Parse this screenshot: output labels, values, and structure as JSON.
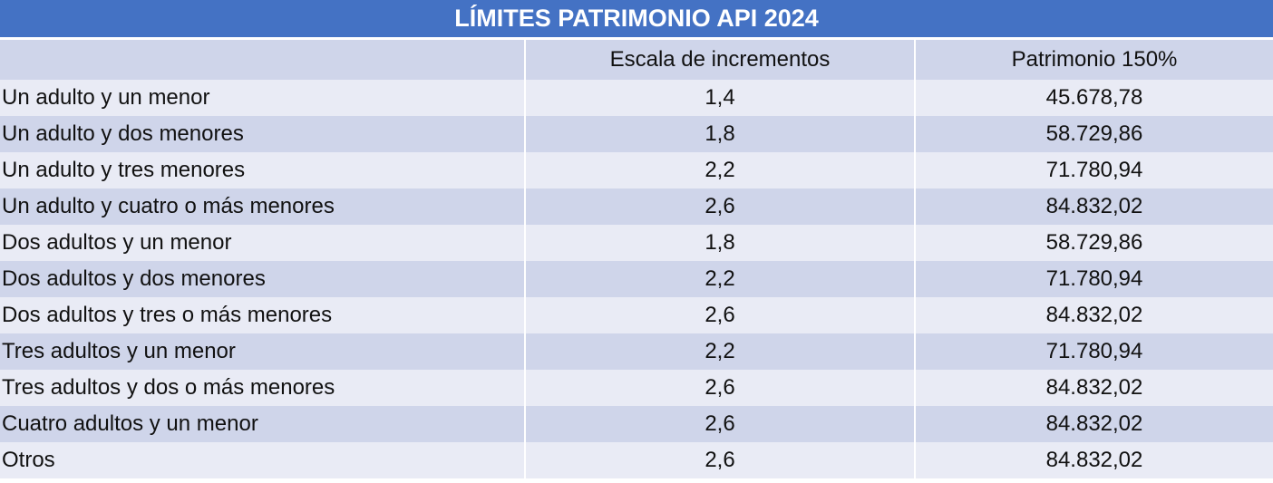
{
  "title": "LÍMITES PATRIMONIO API 2024",
  "colors": {
    "title_bg": "#4472c4",
    "header_bg": "#cfd5ea",
    "row_light": "#e9ebf5",
    "row_dark": "#cfd5ea"
  },
  "table": {
    "headers": [
      "",
      "Escala de incrementos",
      "Patrimonio 150%"
    ],
    "rows": [
      {
        "label": "Un adulto y un menor",
        "escala": "1,4",
        "patrimonio": "45.678,78"
      },
      {
        "label": "Un adulto y dos menores",
        "escala": "1,8",
        "patrimonio": "58.729,86"
      },
      {
        "label": "Un adulto y tres menores",
        "escala": "2,2",
        "patrimonio": "71.780,94"
      },
      {
        "label": "Un adulto y cuatro o más menores",
        "escala": "2,6",
        "patrimonio": "84.832,02"
      },
      {
        "label": "Dos adultos y un menor",
        "escala": "1,8",
        "patrimonio": "58.729,86"
      },
      {
        "label": "Dos adultos y dos menores",
        "escala": "2,2",
        "patrimonio": "71.780,94"
      },
      {
        "label": "Dos adultos y tres o más menores",
        "escala": "2,6",
        "patrimonio": "84.832,02"
      },
      {
        "label": "Tres adultos y un menor",
        "escala": "2,2",
        "patrimonio": "71.780,94"
      },
      {
        "label": "Tres adultos y dos o más menores",
        "escala": "2,6",
        "patrimonio": "84.832,02"
      },
      {
        "label": "Cuatro adultos y un menor",
        "escala": "2,6",
        "patrimonio": "84.832,02"
      },
      {
        "label": "Otros",
        "escala": "2,6",
        "patrimonio": "84.832,02"
      }
    ]
  }
}
